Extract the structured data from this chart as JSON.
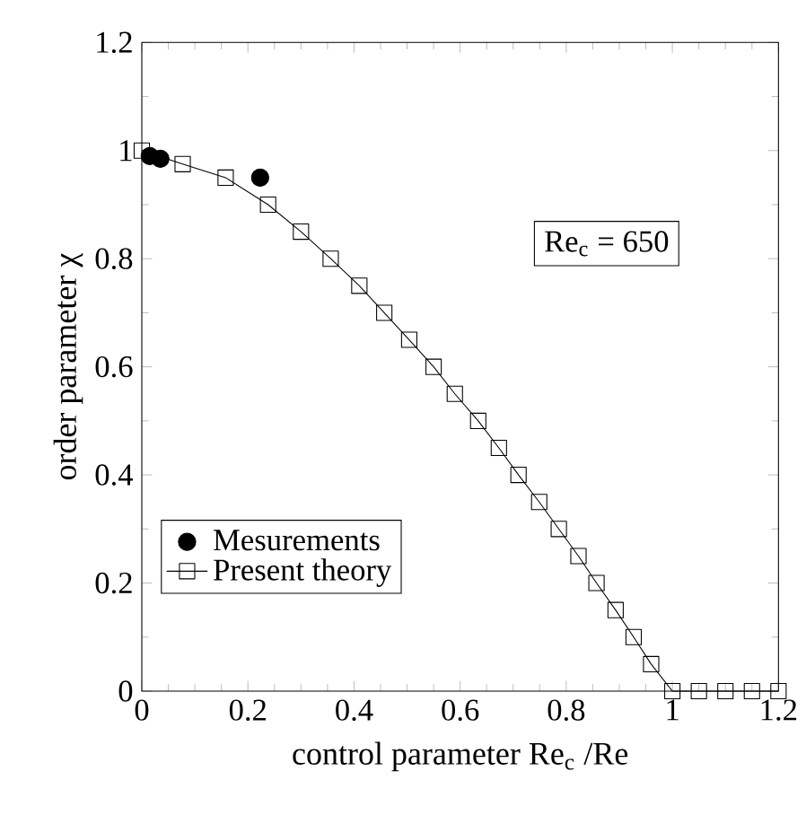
{
  "chart_data": {
    "type": "line",
    "xlabel": "control parameter Re$_{c}$ /Re",
    "ylabel": "order parameter χ",
    "annotations": [
      "Re$_{c}$ = 650"
    ],
    "xlim": [
      0,
      1.2
    ],
    "ylim": [
      0,
      1.2
    ],
    "xticks": [
      0,
      0.2,
      0.4,
      0.6,
      0.8,
      1,
      1.2
    ],
    "yticks": [
      0,
      0.2,
      0.4,
      0.6,
      0.8,
      1,
      1.2
    ],
    "grid": false,
    "legend": "bottom left",
    "series": [
      {
        "name": "Mesurements",
        "type": "scatter",
        "marker": "circle",
        "color": "#000000",
        "x": [
          0.015,
          0.035,
          0.223
        ],
        "values": [
          0.99,
          0.985,
          0.95
        ]
      },
      {
        "name": "Present theory",
        "marker": "square",
        "line_style": "solid",
        "color": "#000000",
        "x": [
          0,
          0.077,
          0.158,
          0.238,
          0.3,
          0.356,
          0.41,
          0.457,
          0.504,
          0.55,
          0.59,
          0.634,
          0.673,
          0.71,
          0.749,
          0.786,
          0.823,
          0.857,
          0.893,
          0.927,
          0.96,
          1.0,
          1.05,
          1.1,
          1.15,
          1.2
        ],
        "values": [
          1.0,
          0.975,
          0.95,
          0.9,
          0.85,
          0.8,
          0.75,
          0.7,
          0.65,
          0.6,
          0.55,
          0.5,
          0.45,
          0.4,
          0.35,
          0.3,
          0.25,
          0.2,
          0.15,
          0.1,
          0.05,
          0,
          0,
          0,
          0,
          0
        ]
      }
    ]
  }
}
